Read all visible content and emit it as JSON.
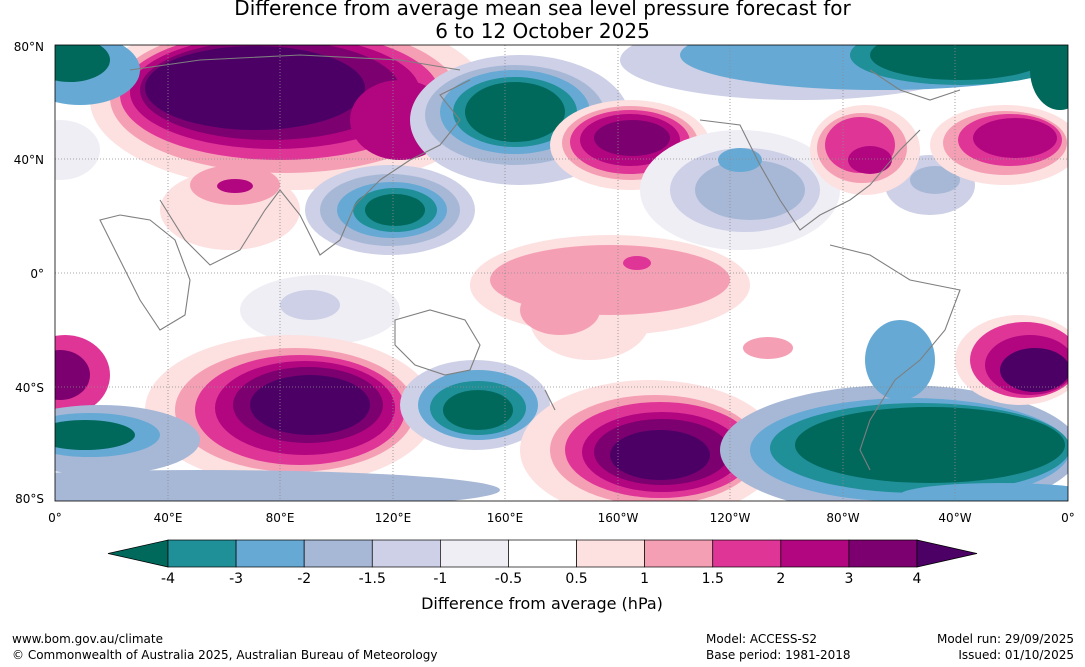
{
  "title": {
    "line1": "Difference from average mean sea level pressure forecast for",
    "line2": "6 to 12 October 2025"
  },
  "map": {
    "lat_labels": [
      "80°N",
      "40°N",
      "0°",
      "40°S",
      "80°S"
    ],
    "lon_labels": [
      "0°",
      "40°E",
      "80°E",
      "120°E",
      "160°E",
      "160°W",
      "120°W",
      "80°W",
      "40°W",
      "0°"
    ]
  },
  "colorbar": {
    "ticks": [
      "-4",
      "-3",
      "-2",
      "-1.5",
      "-1",
      "-0.5",
      "0.5",
      "1",
      "1.5",
      "2",
      "3",
      "4"
    ],
    "label": "Difference from average (hPa)",
    "colors": [
      "#00695c",
      "#1f8f98",
      "#66a9d4",
      "#a7b8d6",
      "#cdd0e6",
      "#efeef5",
      "#ffffff",
      "#fde0e0",
      "#f59fb5",
      "#df3597",
      "#b10680",
      "#7d0070",
      "#4c0066"
    ]
  },
  "footer": {
    "url": "www.bom.gov.au/climate",
    "copyright": "© Commonwealth of Australia 2025, Australian Bureau of Meteorology",
    "model": "Model: ACCESS-S2",
    "base_period": "Base period: 1981-2018",
    "model_run": "Model run: 29/09/2025",
    "issued": "Issued: 01/10/2025"
  }
}
